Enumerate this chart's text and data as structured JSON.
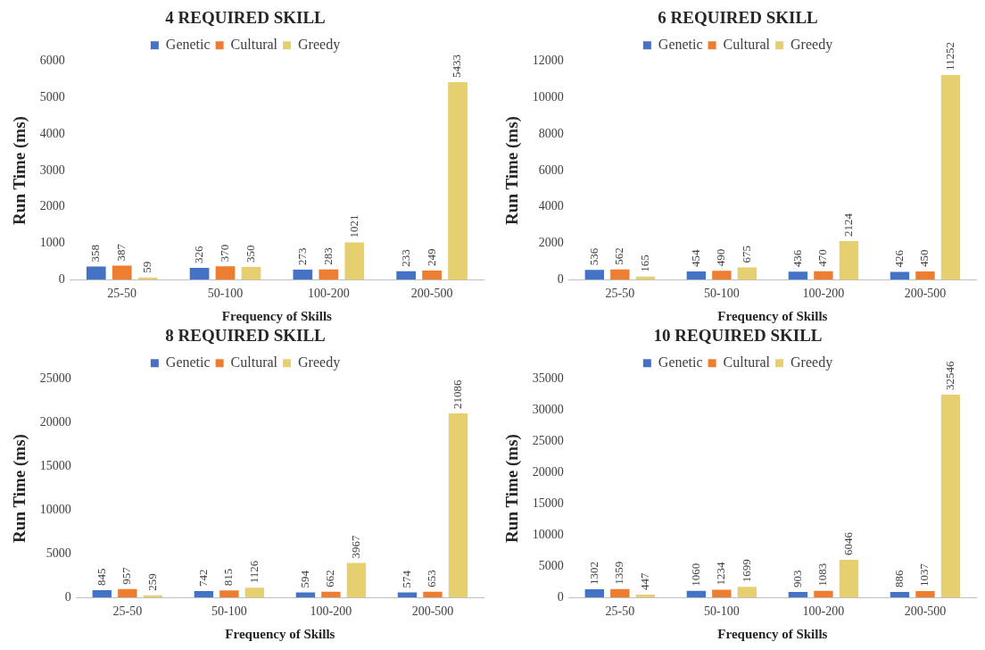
{
  "chart_data": [
    {
      "type": "bar",
      "title": "4 REQUIRED SKILL",
      "xlabel": "Frequency of Skills",
      "ylabel": "Run Time (ms)",
      "categories": [
        "25-50",
        "50-100",
        "100-200",
        "200-500"
      ],
      "series": [
        {
          "name": "Genetic",
          "color": "#4472c4",
          "values": [
            358,
            326,
            273,
            233
          ]
        },
        {
          "name": "Cultural",
          "color": "#ed7d31",
          "values": [
            387,
            370,
            283,
            249
          ]
        },
        {
          "name": "Greedy",
          "color": "#e6cf6e",
          "values": [
            59,
            350,
            1021,
            5433
          ]
        }
      ],
      "ylim": [
        0,
        6000
      ],
      "yticks": [
        0,
        1000,
        2000,
        3000,
        4000,
        5000,
        6000
      ],
      "data_labels": true,
      "legend": "top",
      "grid": false
    },
    {
      "type": "bar",
      "title": "6 REQUIRED SKILL",
      "xlabel": "Frequency of Skills",
      "ylabel": "Run Time (ms)",
      "categories": [
        "25-50",
        "50-100",
        "100-200",
        "200-500"
      ],
      "series": [
        {
          "name": "Genetic",
          "color": "#4472c4",
          "values": [
            536,
            454,
            436,
            426
          ]
        },
        {
          "name": "Cultural",
          "color": "#ed7d31",
          "values": [
            562,
            490,
            470,
            450
          ]
        },
        {
          "name": "Greedy",
          "color": "#e6cf6e",
          "values": [
            165,
            675,
            2124,
            11252
          ]
        }
      ],
      "ylim": [
        0,
        12000
      ],
      "yticks": [
        0,
        2000,
        4000,
        6000,
        8000,
        10000,
        12000
      ],
      "data_labels": true,
      "legend": "top",
      "grid": false
    },
    {
      "type": "bar",
      "title": "8 REQUIRED SKILL",
      "xlabel": "Frequency of Skills",
      "ylabel": "Run Time (ms)",
      "categories": [
        "25-50",
        "50-100",
        "100-200",
        "200-500"
      ],
      "series": [
        {
          "name": "Genetic",
          "color": "#4472c4",
          "values": [
            845,
            742,
            594,
            574
          ]
        },
        {
          "name": "Cultural",
          "color": "#ed7d31",
          "values": [
            957,
            815,
            662,
            653
          ]
        },
        {
          "name": "Greedy",
          "color": "#e6cf6e",
          "values": [
            259,
            1126,
            3967,
            21086
          ]
        }
      ],
      "ylim": [
        0,
        25000
      ],
      "yticks": [
        0,
        5000,
        10000,
        15000,
        20000,
        25000
      ],
      "data_labels": true,
      "legend": "top",
      "grid": false
    },
    {
      "type": "bar",
      "title": "10 REQUIRED SKILL",
      "xlabel": "Frequency of Skills",
      "ylabel": "Run Time (ms)",
      "categories": [
        "25-50",
        "50-100",
        "100-200",
        "200-500"
      ],
      "series": [
        {
          "name": "Genetic",
          "color": "#4472c4",
          "values": [
            1302,
            1060,
            903,
            886
          ]
        },
        {
          "name": "Cultural",
          "color": "#ed7d31",
          "values": [
            1359,
            1234,
            1083,
            1037
          ]
        },
        {
          "name": "Greedy",
          "color": "#e6cf6e",
          "values": [
            447,
            1699,
            6046,
            32546
          ]
        }
      ],
      "ylim": [
        0,
        35000
      ],
      "yticks": [
        0,
        5000,
        10000,
        15000,
        20000,
        25000,
        30000,
        35000
      ],
      "data_labels": true,
      "legend": "top",
      "grid": false
    }
  ]
}
